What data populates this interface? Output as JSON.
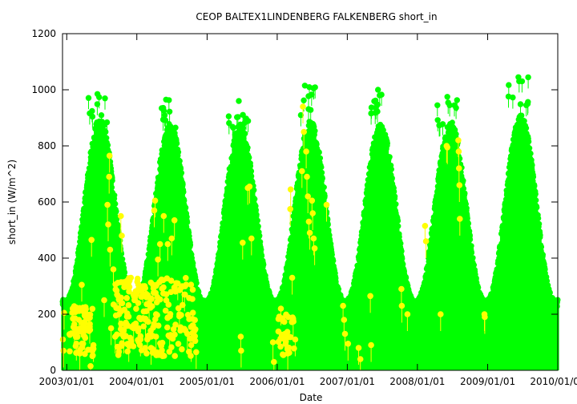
{
  "chart_data": {
    "type": "scatter",
    "title": "CEOP BALTEX1LINDENBERG FALKENBERG  short_in",
    "xlabel": "Date",
    "ylabel": "short_in (W/m^2)",
    "x_range": [
      "2002-12-10",
      "2010-01-01"
    ],
    "ylim": [
      0,
      1200
    ],
    "y_ticks": [
      0,
      200,
      400,
      600,
      800,
      1000,
      1200
    ],
    "x_ticks": [
      {
        "date": "2003-01-01",
        "label": "2003/01/01"
      },
      {
        "date": "2004-01-01",
        "label": "2004/01/01"
      },
      {
        "date": "2005-01-01",
        "label": "2005/01/01"
      },
      {
        "date": "2006-01-01",
        "label": "2006/01/01"
      },
      {
        "date": "2007-01-01",
        "label": "2007/01/01"
      },
      {
        "date": "2008-01-01",
        "label": "2008/01/01"
      },
      {
        "date": "2009-01-01",
        "label": "2009/01/01"
      },
      {
        "date": "2010-01-01",
        "label": "2010/01/01"
      }
    ],
    "grid": false,
    "legend": "none",
    "colors": {
      "main": "#00ff00",
      "flagged": "#ffff00",
      "axis": "#000000"
    },
    "series": [
      {
        "color": "#00ff00",
        "summer_envelope": [
          {
            "date": "2003-06-21",
            "peak": 900
          },
          {
            "date": "2004-06-21",
            "peak": 880
          },
          {
            "date": "2005-06-21",
            "peak": 880
          },
          {
            "date": "2006-06-21",
            "peak": 890
          },
          {
            "date": "2007-06-21",
            "peak": 880
          },
          {
            "date": "2008-06-21",
            "peak": 890
          },
          {
            "date": "2009-06-21",
            "peak": 910
          }
        ],
        "winter_minimum_peak": 250,
        "outlier_maxima": [
          {
            "date": "2003-06-10",
            "value": 985
          },
          {
            "date": "2004-06-01",
            "value": 965
          },
          {
            "date": "2005-06-15",
            "value": 960
          },
          {
            "date": "2006-05-25",
            "value": 1015
          },
          {
            "date": "2007-06-10",
            "value": 1000
          },
          {
            "date": "2008-06-05",
            "value": 975
          },
          {
            "date": "2009-06-10",
            "value": 1045
          }
        ]
      },
      {
        "color": "#ffff00",
        "points": [
          [
            "2002-12-12",
            110
          ],
          [
            "2002-12-15",
            70
          ],
          [
            "2002-12-18",
            205
          ],
          [
            "2003-02-01",
            220
          ],
          [
            "2003-02-10",
            150
          ],
          [
            "2003-02-20",
            95
          ],
          [
            "2003-03-05",
            180
          ],
          [
            "2003-03-10",
            60
          ],
          [
            "2003-03-20",
            305
          ],
          [
            "2003-04-05",
            120
          ],
          [
            "2003-04-15",
            200
          ],
          [
            "2003-05-01",
            155
          ],
          [
            "2003-05-05",
            15
          ],
          [
            "2003-05-10",
            465
          ],
          [
            "2003-05-20",
            90
          ],
          [
            "2003-07-15",
            250
          ],
          [
            "2003-08-01",
            590
          ],
          [
            "2003-08-05",
            520
          ],
          [
            "2003-08-10",
            690
          ],
          [
            "2003-08-12",
            765
          ],
          [
            "2003-08-15",
            430
          ],
          [
            "2003-08-20",
            150
          ],
          [
            "2003-09-01",
            360
          ],
          [
            "2003-09-10",
            120
          ],
          [
            "2003-09-20",
            270
          ],
          [
            "2003-10-01",
            200
          ],
          [
            "2003-10-10",
            550
          ],
          [
            "2003-10-15",
            480
          ],
          [
            "2003-10-25",
            120
          ],
          [
            "2003-11-05",
            170
          ],
          [
            "2003-11-20",
            90
          ],
          [
            "2003-12-01",
            330
          ],
          [
            "2003-12-15",
            150
          ],
          [
            "2004-01-05",
            280
          ],
          [
            "2004-01-10",
            150
          ],
          [
            "2004-01-20",
            110
          ],
          [
            "2004-02-01",
            300
          ],
          [
            "2004-02-15",
            180
          ],
          [
            "2004-02-25",
            110
          ],
          [
            "2004-03-05",
            240
          ],
          [
            "2004-03-15",
            80
          ],
          [
            "2004-03-25",
            305
          ],
          [
            "2004-04-01",
            570
          ],
          [
            "2004-04-05",
            605
          ],
          [
            "2004-04-10",
            120
          ],
          [
            "2004-04-20",
            395
          ],
          [
            "2004-05-01",
            450
          ],
          [
            "2004-05-20",
            550
          ],
          [
            "2004-06-10",
            450
          ],
          [
            "2004-06-20",
            120
          ],
          [
            "2004-07-01",
            470
          ],
          [
            "2004-07-15",
            535
          ],
          [
            "2004-08-01",
            310
          ],
          [
            "2004-08-10",
            200
          ],
          [
            "2004-08-25",
            300
          ],
          [
            "2004-09-05",
            270
          ],
          [
            "2004-09-20",
            130
          ],
          [
            "2004-10-10",
            90
          ],
          [
            "2004-10-20",
            160
          ],
          [
            "2004-11-05",
            65
          ],
          [
            "2005-06-25",
            120
          ],
          [
            "2005-06-27",
            70
          ],
          [
            "2005-07-05",
            455
          ],
          [
            "2005-08-01",
            650
          ],
          [
            "2005-08-10",
            655
          ],
          [
            "2005-08-20",
            470
          ],
          [
            "2005-12-10",
            100
          ],
          [
            "2005-12-15",
            30
          ],
          [
            "2006-01-20",
            220
          ],
          [
            "2006-02-10",
            130
          ],
          [
            "2006-02-25",
            60
          ],
          [
            "2006-03-10",
            575
          ],
          [
            "2006-03-12",
            645
          ],
          [
            "2006-03-20",
            330
          ],
          [
            "2006-03-25",
            180
          ],
          [
            "2006-04-05",
            110
          ],
          [
            "2006-05-10",
            710
          ],
          [
            "2006-05-15",
            940
          ],
          [
            "2006-05-20",
            850
          ],
          [
            "2006-06-01",
            780
          ],
          [
            "2006-06-05",
            690
          ],
          [
            "2006-06-10",
            620
          ],
          [
            "2006-06-15",
            530
          ],
          [
            "2006-06-20",
            490
          ],
          [
            "2006-07-01",
            605
          ],
          [
            "2006-07-05",
            560
          ],
          [
            "2006-07-10",
            470
          ],
          [
            "2006-07-15",
            435
          ],
          [
            "2006-09-15",
            590
          ],
          [
            "2006-12-10",
            230
          ],
          [
            "2006-12-15",
            180
          ],
          [
            "2006-12-20",
            130
          ],
          [
            "2007-01-05",
            95
          ],
          [
            "2007-03-01",
            80
          ],
          [
            "2007-03-10",
            40
          ],
          [
            "2007-05-01",
            265
          ],
          [
            "2007-05-05",
            90
          ],
          [
            "2007-10-10",
            290
          ],
          [
            "2007-10-12",
            230
          ],
          [
            "2007-11-10",
            200
          ],
          [
            "2008-02-10",
            515
          ],
          [
            "2008-02-15",
            460
          ],
          [
            "2008-05-01",
            200
          ],
          [
            "2008-06-01",
            800
          ],
          [
            "2008-06-05",
            795
          ],
          [
            "2008-08-01",
            820
          ],
          [
            "2008-08-03",
            780
          ],
          [
            "2008-08-05",
            720
          ],
          [
            "2008-08-07",
            660
          ],
          [
            "2008-08-09",
            540
          ],
          [
            "2008-12-15",
            200
          ],
          [
            "2008-12-17",
            190
          ]
        ]
      }
    ]
  }
}
